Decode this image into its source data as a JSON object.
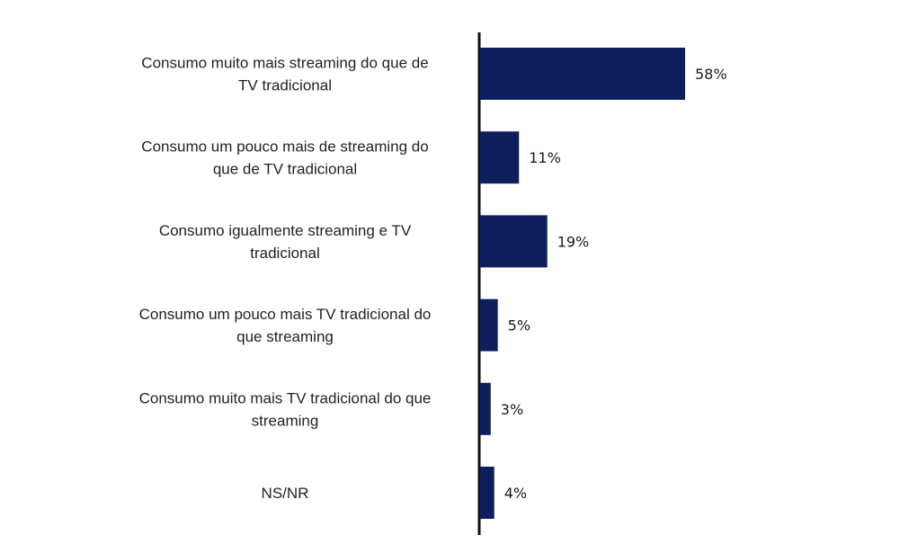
{
  "chart_data": {
    "type": "bar",
    "orientation": "horizontal",
    "categories": [
      [
        "Consumo muito mais streaming do que de",
        "TV tradicional"
      ],
      [
        "Consumo um pouco mais de streaming do",
        "que de TV tradicional"
      ],
      [
        "Consumo igualmente streaming e TV",
        "tradicional"
      ],
      [
        "Consumo um pouco mais TV tradicional do",
        "que streaming"
      ],
      [
        "Consumo muito mais TV tradicional do que",
        "streaming"
      ],
      [
        "NS/NR"
      ]
    ],
    "values": [
      58,
      11,
      19,
      5,
      3,
      4
    ],
    "value_labels": [
      "58%",
      "11%",
      "19%",
      "5%",
      "3%",
      "4%"
    ],
    "unit": "%",
    "xlim": [
      0,
      100
    ],
    "grid": false,
    "legend": "none",
    "colors": {
      "bar": "#0c1f5c",
      "axis": "#111111"
    }
  }
}
